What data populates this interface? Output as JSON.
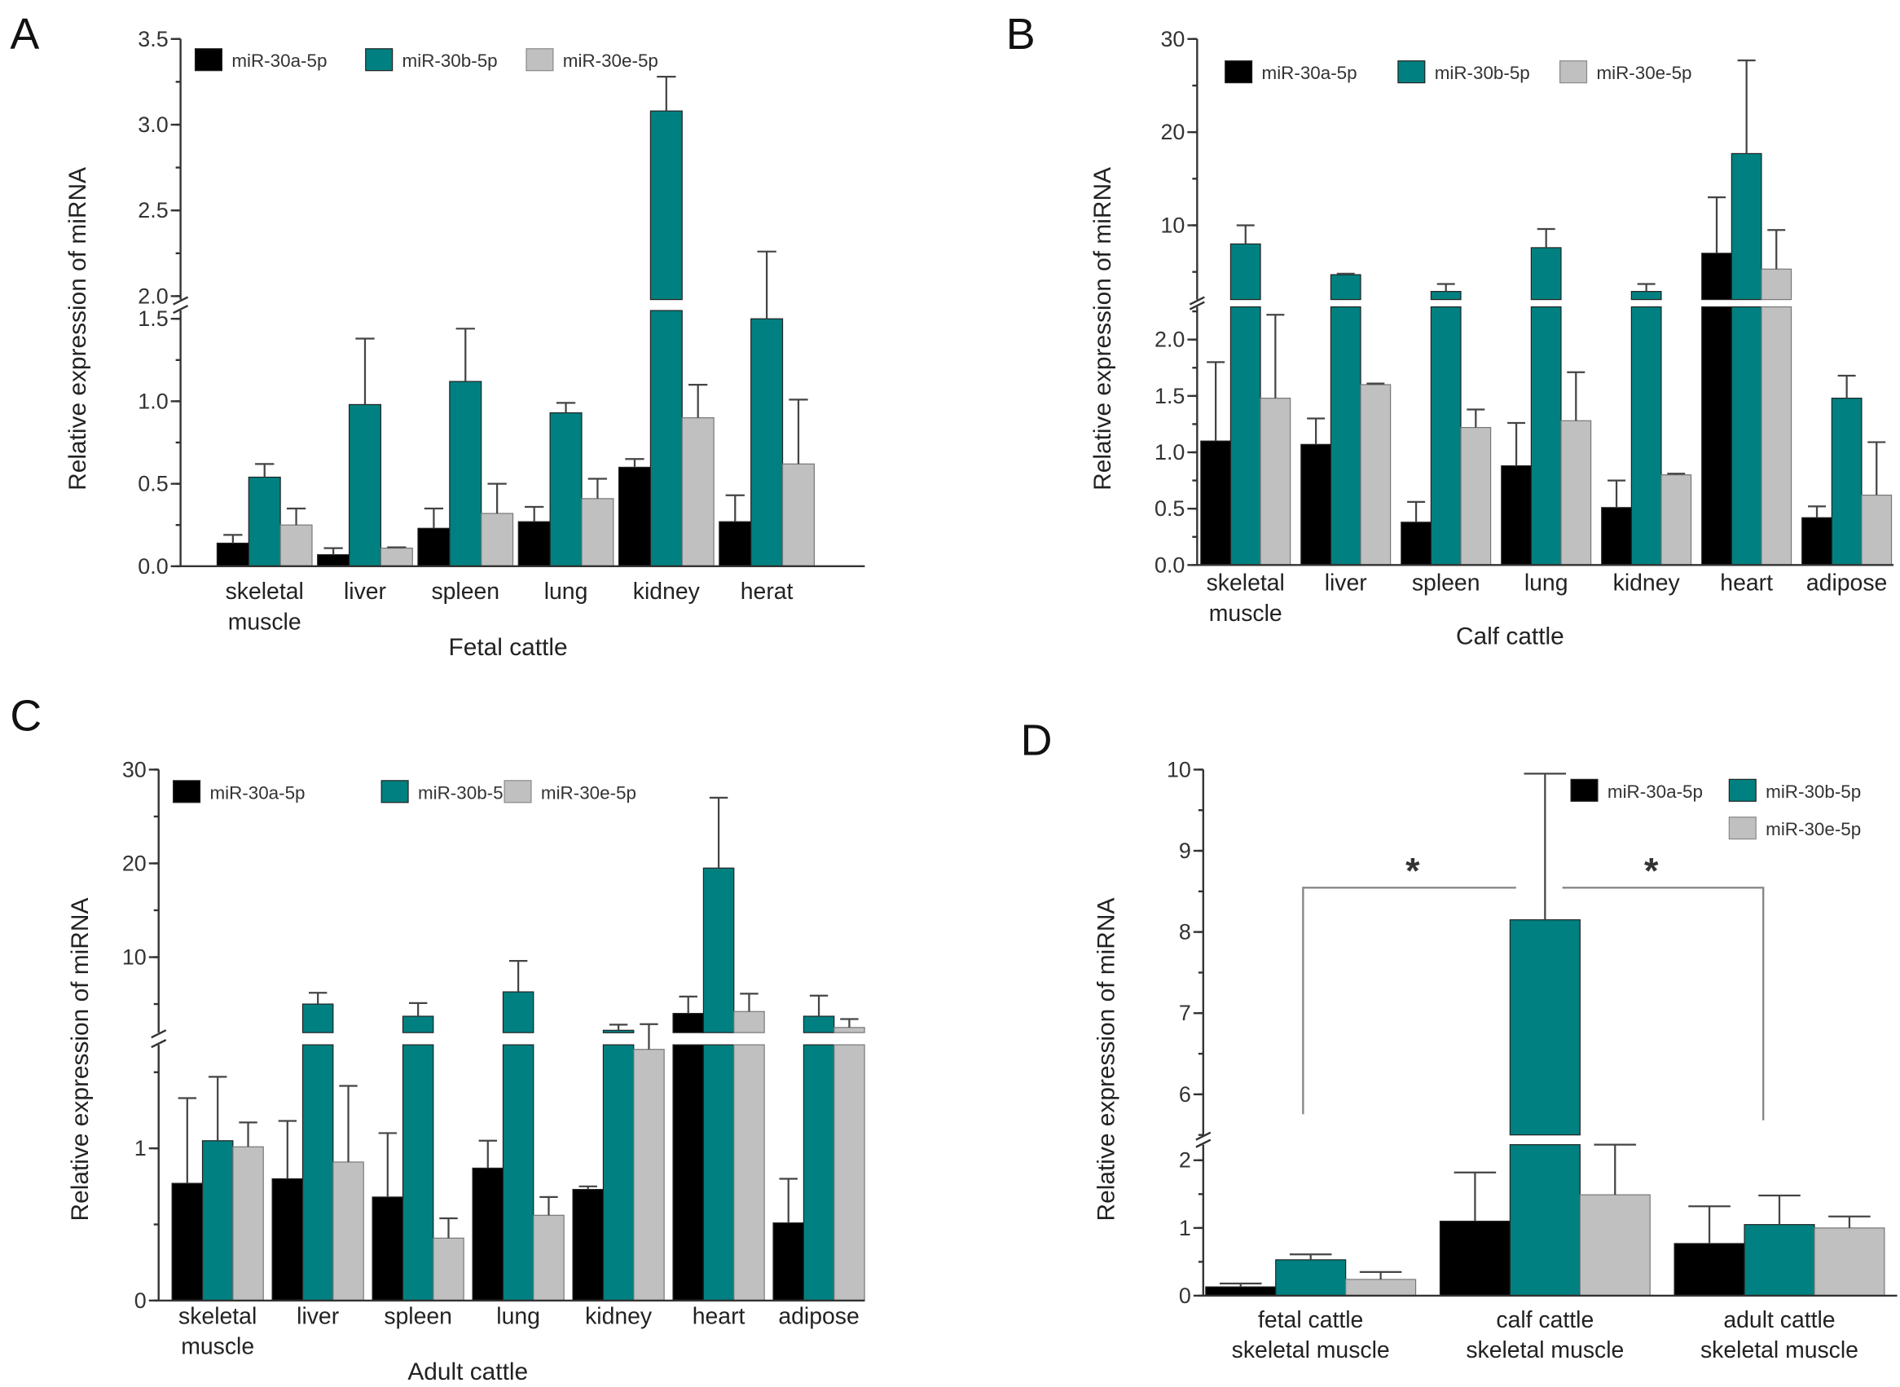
{
  "series_meta": [
    {
      "name": "miR-30a-5p",
      "color": "#000000"
    },
    {
      "name": "miR-30b-5p",
      "color": "#008080"
    },
    {
      "name": "miR-30e-5p",
      "color": "#c0c0c0"
    }
  ],
  "chart_data": [
    {
      "panel_label": "A",
      "type": "bar",
      "title": "",
      "xlabel": "Fetal cattle",
      "ylabel": "Relative expression of miRNA",
      "categories": [
        [
          "skeletal",
          "muscle"
        ],
        [
          "liver"
        ],
        [
          "spleen"
        ],
        [
          "lung"
        ],
        [
          "kidney"
        ],
        [
          "herat"
        ]
      ],
      "series": [
        {
          "name": "miR-30a-5p",
          "values": [
            0.14,
            0.07,
            0.23,
            0.27,
            0.6,
            0.27
          ],
          "errors": [
            0.05,
            0.04,
            0.12,
            0.09,
            0.05,
            0.16
          ]
        },
        {
          "name": "miR-30b-5p",
          "values": [
            0.54,
            0.98,
            1.12,
            0.93,
            3.08,
            1.5
          ],
          "errors": [
            0.08,
            0.4,
            0.32,
            0.06,
            0.2,
            0.76
          ]
        },
        {
          "name": "miR-30e-5p",
          "values": [
            0.25,
            0.11,
            0.32,
            0.41,
            0.9,
            0.62
          ],
          "errors": [
            0.1,
            0.005,
            0.18,
            0.12,
            0.2,
            0.39
          ]
        }
      ],
      "y_break": {
        "lower_range": [
          0,
          1.55
        ],
        "upper_range": [
          1.98,
          3.5
        ]
      },
      "yticks_lower": [
        "0.0",
        "0.5",
        "1.0",
        "1.5"
      ],
      "yticks_upper": [
        "2.0",
        "2.5",
        "3.0",
        "3.5"
      ],
      "legend": "top-left"
    },
    {
      "panel_label": "B",
      "type": "bar",
      "title": "",
      "xlabel": "Calf cattle",
      "ylabel": "Relative expression of miRNA",
      "categories": [
        [
          "skeletal",
          "muscle"
        ],
        [
          "liver"
        ],
        [
          "spleen"
        ],
        [
          "lung"
        ],
        [
          "kidney"
        ],
        [
          "heart"
        ],
        [
          "adipose"
        ]
      ],
      "series": [
        {
          "name": "miR-30a-5p",
          "values": [
            1.1,
            1.07,
            0.38,
            0.88,
            0.51,
            7.0,
            0.42
          ],
          "errors": [
            0.7,
            0.23,
            0.18,
            0.38,
            0.24,
            6.0,
            0.1
          ]
        },
        {
          "name": "miR-30b-5p",
          "values": [
            8.0,
            4.7,
            2.9,
            7.6,
            2.9,
            17.7,
            1.48
          ],
          "errors": [
            2.0,
            0.1,
            0.8,
            2.0,
            0.8,
            10.0,
            0.2
          ]
        },
        {
          "name": "miR-30e-5p",
          "values": [
            1.48,
            1.6,
            1.22,
            1.28,
            0.8,
            5.3,
            0.62
          ],
          "errors": [
            0.74,
            0.01,
            0.16,
            0.43,
            0.01,
            4.2,
            0.47
          ]
        }
      ],
      "y_break": {
        "lower_range": [
          0,
          2.29
        ],
        "upper_range": [
          2.03,
          30
        ]
      },
      "yticks_lower": [
        "0.0",
        "0.5",
        "1.0",
        "1.5",
        "2.0"
      ],
      "yticks_upper": [
        "10",
        "20",
        "30"
      ],
      "legend": "top"
    },
    {
      "panel_label": "C",
      "type": "bar",
      "title": "",
      "xlabel": "Adult cattle",
      "ylabel": "Relative expression of miRNA",
      "categories": [
        [
          "skeletal",
          "muscle"
        ],
        [
          "liver"
        ],
        [
          "spleen"
        ],
        [
          "lung"
        ],
        [
          "kidney"
        ],
        [
          "heart"
        ],
        [
          "adipose"
        ]
      ],
      "series": [
        {
          "name": "miR-30a-5p",
          "values": [
            0.77,
            0.8,
            0.68,
            0.87,
            0.73,
            4.0,
            0.51
          ],
          "errors": [
            0.56,
            0.38,
            0.42,
            0.18,
            0.02,
            1.8,
            0.29
          ]
        },
        {
          "name": "miR-30b-5p",
          "values": [
            1.05,
            5.0,
            3.7,
            6.3,
            2.2,
            19.5,
            3.7
          ],
          "errors": [
            0.42,
            1.2,
            1.4,
            3.3,
            0.6,
            7.5,
            2.2
          ]
        },
        {
          "name": "miR-30e-5p",
          "values": [
            1.01,
            0.91,
            0.41,
            0.56,
            1.65,
            4.2,
            2.5
          ],
          "errors": [
            0.16,
            0.5,
            0.13,
            0.12,
            1.2,
            1.9,
            0.9
          ]
        }
      ],
      "y_break": {
        "lower_range": [
          0,
          1.68
        ],
        "upper_range": [
          1.95,
          30
        ]
      },
      "yticks_lower": [
        "0",
        "1"
      ],
      "yticks_upper": [
        "10",
        "20",
        "30"
      ],
      "legend": "top"
    },
    {
      "panel_label": "D",
      "type": "bar",
      "title": "",
      "xlabel": "",
      "ylabel": "Relative expression of miRNA",
      "categories": [
        [
          "fetal cattle",
          "skeletal muscle"
        ],
        [
          "calf cattle",
          "skeletal muscle"
        ],
        [
          "adult cattle",
          "skeletal muscle"
        ]
      ],
      "series": [
        {
          "name": "miR-30a-5p",
          "values": [
            0.13,
            1.1,
            0.77
          ],
          "errors": [
            0.05,
            0.72,
            0.55
          ]
        },
        {
          "name": "miR-30b-5p",
          "values": [
            0.53,
            8.15,
            1.05
          ],
          "errors": [
            0.08,
            1.8,
            0.43
          ]
        },
        {
          "name": "miR-30e-5p",
          "values": [
            0.24,
            1.49,
            1.0
          ],
          "errors": [
            0.11,
            0.75,
            0.17
          ]
        }
      ],
      "y_break": {
        "lower_range": [
          0,
          2.23
        ],
        "upper_range": [
          5.5,
          10
        ]
      },
      "yticks_lower": [
        "0",
        "1",
        "2"
      ],
      "yticks_upper": [
        "6",
        "7",
        "8",
        "9",
        "10"
      ],
      "annotations": [
        "*",
        "*"
      ],
      "legend": "top-right"
    }
  ]
}
